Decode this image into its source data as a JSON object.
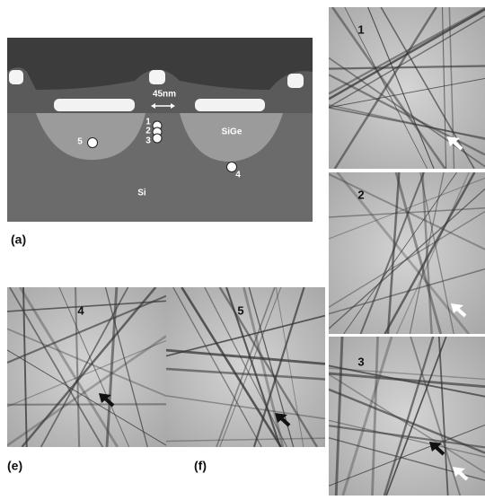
{
  "panel_a": {
    "label": "(a)",
    "scale_label": "45nm",
    "material_labels": [
      "SiGe",
      "Si"
    ],
    "point_labels": [
      "1",
      "2",
      "3",
      "4",
      "5"
    ]
  },
  "patterns": [
    {
      "label": "1"
    },
    {
      "label": "2"
    },
    {
      "label": "3"
    },
    {
      "label": "4",
      "caption": "(e)"
    },
    {
      "label": "5",
      "caption": "(f)"
    }
  ]
}
